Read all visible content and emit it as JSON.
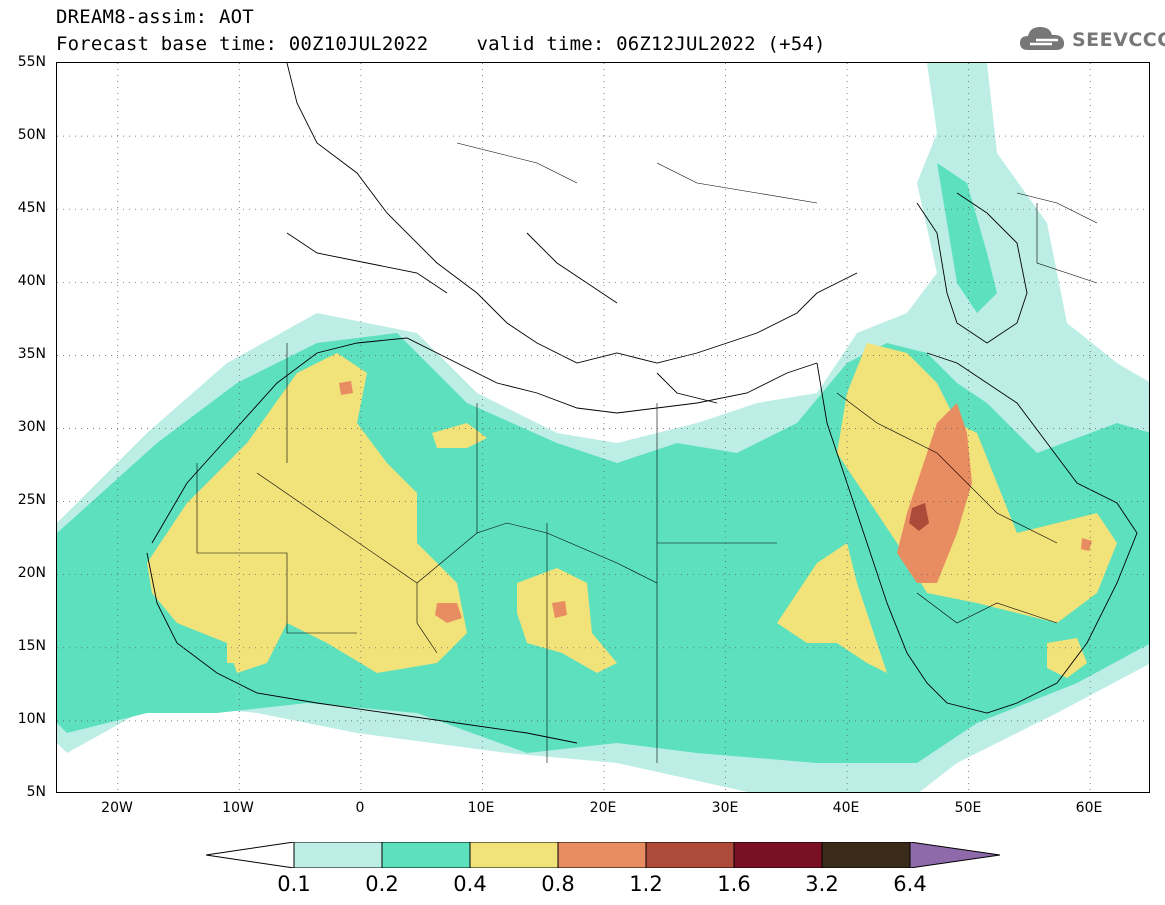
{
  "header": {
    "title_line1": "DREAM8-assim: AOT",
    "base_time": "Forecast base time: 00Z10JUL2022",
    "valid_time": "valid time: 06Z12JUL2022 (+54)"
  },
  "logo": {
    "text": "SEEVCCC",
    "icon": "cloud-icon"
  },
  "map": {
    "lat_labels": [
      "55N",
      "50N",
      "45N",
      "40N",
      "35N",
      "30N",
      "25N",
      "20N",
      "15N",
      "10N",
      "5N"
    ],
    "lon_labels": [
      "20W",
      "10W",
      "0",
      "10E",
      "20E",
      "30E",
      "40E",
      "50E",
      "60E"
    ],
    "lat_values": [
      55,
      50,
      45,
      40,
      35,
      30,
      25,
      20,
      15,
      10,
      5
    ],
    "lon_values": [
      -20,
      -10,
      0,
      10,
      20,
      30,
      40,
      50,
      60
    ],
    "extent": {
      "lon_min": -25,
      "lon_max": 65,
      "lat_min": 5,
      "lat_max": 55
    },
    "gridlines": "dotted"
  },
  "legend": {
    "labels": [
      "0.1",
      "0.2",
      "0.4",
      "0.8",
      "1.2",
      "1.6",
      "3.2",
      "6.4"
    ],
    "colors": [
      "#ffffff",
      "#bdeee6",
      "#5ce0be",
      "#f2e27a",
      "#e88c62",
      "#ad4a3a",
      "#7a1024",
      "#3a2a1a",
      "#8e6aaa"
    ]
  },
  "colors": {
    "aot_0_1": "#bdeee6",
    "aot_0_2": "#5ce0be",
    "aot_0_4": "#f2e27a",
    "aot_0_8": "#e88c62",
    "aot_1_2": "#ad4a3a"
  }
}
